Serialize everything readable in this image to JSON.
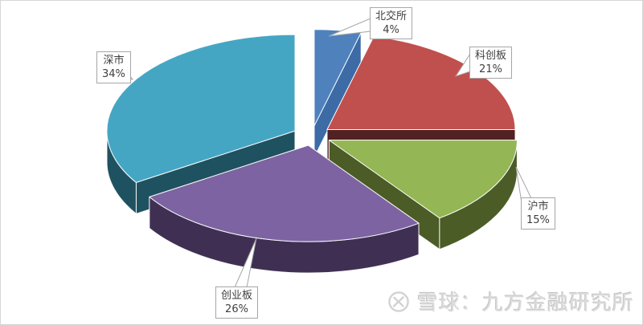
{
  "chart_data": {
    "type": "pie",
    "style": "3d-exploded-pie",
    "title": "",
    "start_angle_deg": 0,
    "direction": "clockwise",
    "legend_position": "none",
    "labels_style": "callout",
    "slices": [
      {
        "id": "bjs",
        "label": "北交所",
        "percent": 4,
        "percent_label": "4%",
        "color_top": "#4f81bd",
        "color_side": "#3c6ba6"
      },
      {
        "id": "kcb",
        "label": "科创板",
        "percent": 21,
        "percent_label": "21%",
        "color_top": "#c0504d",
        "color_side": "#522123"
      },
      {
        "id": "hs",
        "label": "沪市",
        "percent": 15,
        "percent_label": "15%",
        "color_top": "#94b654",
        "color_side": "#4b5c27"
      },
      {
        "id": "cyb",
        "label": "创业板",
        "percent": 26,
        "percent_label": "26%",
        "color_top": "#7d63a1",
        "color_side": "#3f3053"
      },
      {
        "id": "ss",
        "label": "深市",
        "percent": 34,
        "percent_label": "34%",
        "color_top": "#45a6c4",
        "color_side": "#1f5260"
      }
    ],
    "edge_color": "#ffffff",
    "callout_border_color": "#a6a6a6",
    "background_color": "#ffffff"
  },
  "watermark": {
    "text": "雪球：九方金融研究所",
    "logo_icon": "xueqiu-logo"
  }
}
